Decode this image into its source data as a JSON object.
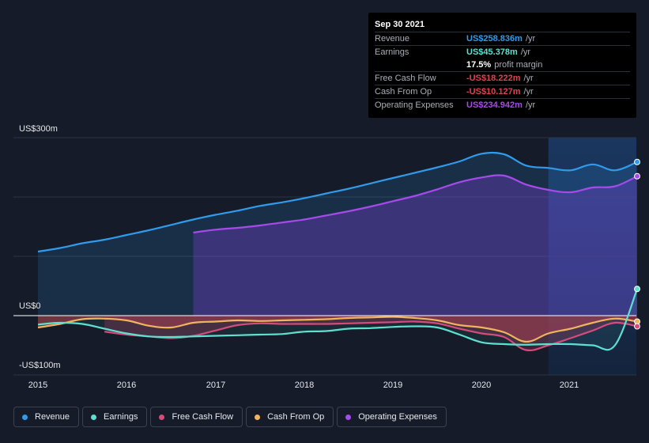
{
  "tooltip": {
    "date": "Sep 30 2021",
    "rows": [
      {
        "label": "Revenue",
        "value": "US$258.836m",
        "unit": "/yr",
        "color": "#2f9bea"
      },
      {
        "label": "Earnings",
        "value": "US$45.378m",
        "unit": "/yr",
        "color": "#5ee0d1"
      },
      {
        "label": "",
        "value": "17.5%",
        "unit": "profit margin",
        "color": "#ffffff"
      },
      {
        "label": "Free Cash Flow",
        "value": "-US$18.222m",
        "unit": "/yr",
        "color": "#e0414f"
      },
      {
        "label": "Cash From Op",
        "value": "-US$10.127m",
        "unit": "/yr",
        "color": "#e0414f"
      },
      {
        "label": "Operating Expenses",
        "value": "US$234.942m",
        "unit": "/yr",
        "color": "#a64bea"
      }
    ]
  },
  "axis": {
    "y_top_label": "US$300m",
    "y_zero_label": "US$0",
    "y_bottom_label": "-US$100m"
  },
  "chart_data": {
    "type": "area",
    "x_unit": "year",
    "xlim": [
      2014.98,
      2021.75
    ],
    "ylim": [
      -100,
      300
    ],
    "x_ticks": [
      "2015",
      "2016",
      "2017",
      "2018",
      "2019",
      "2020",
      "2021"
    ],
    "highlight_start": 2020.75,
    "grid": true,
    "series": [
      {
        "name": "Revenue",
        "color": "#2f9bea",
        "x": [
          2015,
          2015.25,
          2015.5,
          2015.75,
          2016,
          2016.25,
          2016.5,
          2016.75,
          2017,
          2017.25,
          2017.5,
          2017.75,
          2018,
          2018.25,
          2018.5,
          2018.75,
          2019,
          2019.25,
          2019.5,
          2019.75,
          2020,
          2020.25,
          2020.5,
          2020.75,
          2021,
          2021.25,
          2021.5,
          2021.75
        ],
        "y": [
          108,
          114,
          122,
          128,
          136,
          144,
          153,
          162,
          170,
          177,
          185,
          191,
          198,
          206,
          214,
          223,
          232,
          241,
          250,
          260,
          273,
          272,
          253,
          249,
          245,
          255,
          245,
          259
        ]
      },
      {
        "name": "Earnings",
        "color": "#5ee0d1",
        "x": [
          2015,
          2015.25,
          2015.5,
          2015.75,
          2016,
          2016.25,
          2016.5,
          2016.75,
          2017,
          2017.25,
          2017.5,
          2017.75,
          2018,
          2018.25,
          2018.5,
          2018.75,
          2019,
          2019.25,
          2019.5,
          2019.75,
          2020,
          2020.25,
          2020.5,
          2020.75,
          2021,
          2021.25,
          2021.5,
          2021.75
        ],
        "y": [
          -15,
          -12,
          -14,
          -22,
          -30,
          -35,
          -36,
          -35,
          -34,
          -33,
          -32,
          -31,
          -27,
          -26,
          -22,
          -21,
          -19,
          -18,
          -20,
          -32,
          -45,
          -48,
          -49,
          -48,
          -48,
          -50,
          -50,
          45
        ]
      },
      {
        "name": "Free Cash Flow",
        "color": "#d54b7c",
        "x": [
          2015.75,
          2016,
          2016.25,
          2016.5,
          2016.75,
          2017,
          2017.25,
          2017.5,
          2017.75,
          2018,
          2018.25,
          2018.5,
          2018.75,
          2019,
          2019.25,
          2019.5,
          2019.75,
          2020,
          2020.25,
          2020.5,
          2020.75,
          2021,
          2021.25,
          2021.5,
          2021.75
        ],
        "y": [
          -27,
          -32,
          -35,
          -38,
          -34,
          -25,
          -16,
          -13,
          -14,
          -14,
          -14,
          -13,
          -12,
          -11,
          -10,
          -13,
          -22,
          -30,
          -36,
          -58,
          -50,
          -38,
          -25,
          -12,
          -18
        ]
      },
      {
        "name": "Cash From Op",
        "color": "#f0b461",
        "x": [
          2015,
          2015.25,
          2015.5,
          2015.75,
          2016,
          2016.25,
          2016.5,
          2016.75,
          2017,
          2017.25,
          2017.5,
          2017.75,
          2018,
          2018.25,
          2018.5,
          2018.75,
          2019,
          2019.25,
          2019.5,
          2019.75,
          2020,
          2020.25,
          2020.5,
          2020.75,
          2021,
          2021.25,
          2021.5,
          2021.75
        ],
        "y": [
          -20,
          -14,
          -6,
          -5,
          -8,
          -17,
          -20,
          -12,
          -10,
          -8,
          -9,
          -8,
          -7,
          -6,
          -4,
          -3,
          -2,
          -4,
          -8,
          -16,
          -20,
          -28,
          -44,
          -30,
          -22,
          -12,
          -5,
          -10
        ]
      },
      {
        "name": "Operating Expenses",
        "color": "#a64bea",
        "x": [
          2016.75,
          2017,
          2017.25,
          2017.5,
          2017.75,
          2018,
          2018.25,
          2018.5,
          2018.75,
          2019,
          2019.25,
          2019.5,
          2019.75,
          2020,
          2020.25,
          2020.5,
          2020.75,
          2021,
          2021.25,
          2021.5,
          2021.75
        ],
        "y": [
          140,
          145,
          148,
          152,
          157,
          162,
          169,
          176,
          184,
          193,
          202,
          213,
          225,
          233,
          236,
          221,
          212,
          208,
          216,
          218,
          235
        ]
      }
    ]
  },
  "legend": [
    {
      "label": "Revenue",
      "color": "#2f9bea"
    },
    {
      "label": "Earnings",
      "color": "#5ee0d1"
    },
    {
      "label": "Free Cash Flow",
      "color": "#d54b7c"
    },
    {
      "label": "Cash From Op",
      "color": "#f0b461"
    },
    {
      "label": "Operating Expenses",
      "color": "#a64bea"
    }
  ]
}
